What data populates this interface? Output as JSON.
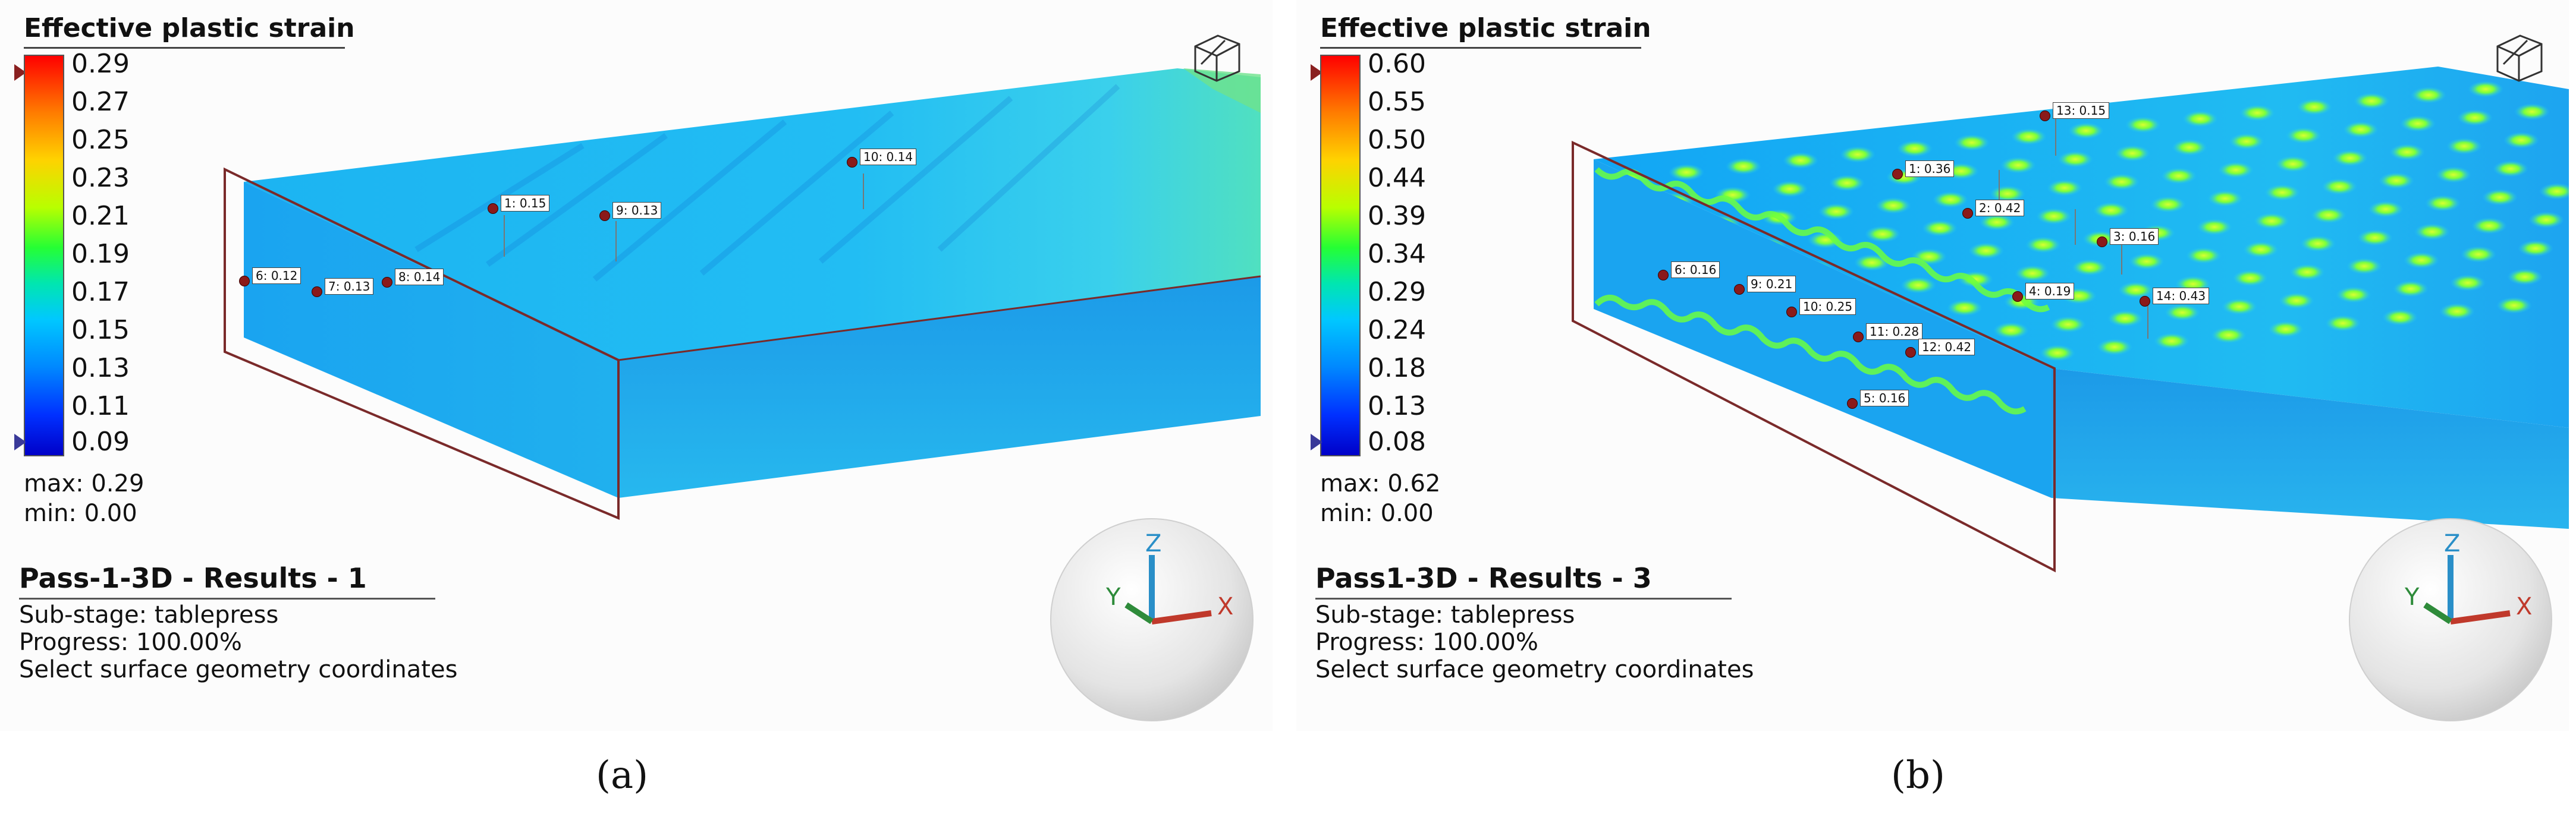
{
  "panel_a": {
    "legend": {
      "title": "Effective plastic strain",
      "ticks": [
        "0.29",
        "0.27",
        "0.25",
        "0.23",
        "0.21",
        "0.19",
        "0.17",
        "0.15",
        "0.13",
        "0.11",
        "0.09"
      ],
      "max_text": "max: 0.29",
      "min_text": "min: 0.00"
    },
    "result": {
      "title": "Pass-1-3D - Results - 1",
      "substage": "Sub-stage: tablepress",
      "progress": "Progress: 100.00%",
      "hint": "Select surface geometry coordinates"
    },
    "probes": [
      "1: 0.15",
      "9: 0.13",
      "10: 0.14",
      "6: 0.12",
      "7: 0.13",
      "8: 0.14"
    ],
    "axes": {
      "x": "X",
      "y": "Y",
      "z": "Z"
    },
    "caption": "(a)"
  },
  "panel_b": {
    "legend": {
      "title": "Effective plastic strain",
      "ticks": [
        "0.60",
        "0.55",
        "0.50",
        "0.44",
        "0.39",
        "0.34",
        "0.29",
        "0.24",
        "0.18",
        "0.13",
        "0.08"
      ],
      "max_text": "max: 0.62",
      "min_text": "min: 0.00"
    },
    "result": {
      "title": "Pass1-3D - Results - 3",
      "substage": "Sub-stage: tablepress",
      "progress": "Progress: 100.00%",
      "hint": "Select surface geometry coordinates"
    },
    "probes": [
      "13: 0.15",
      "1: 0.36",
      "2: 0.42",
      "3: 0.16",
      "6: 0.16",
      "9: 0.21",
      "10: 0.25",
      "4: 0.19",
      "14: 0.43",
      "11: 0.28",
      "12: 0.42",
      "5: 0.16"
    ],
    "axes": {
      "x": "X",
      "y": "Y",
      "z": "Z"
    },
    "caption": "(b)"
  },
  "colors": {
    "plate_base": "#19a9f0",
    "plate_side": "#1f8fe0",
    "section_frame": "#7a2a2a",
    "hot_spot": "#9cff3a",
    "axis_x": "#c0392b",
    "axis_y": "#2e8b3a",
    "axis_z": "#2a8fc8"
  },
  "icons": {
    "view_cube": "view-cube-icon",
    "axis_triad": "axis-triad-icon"
  }
}
